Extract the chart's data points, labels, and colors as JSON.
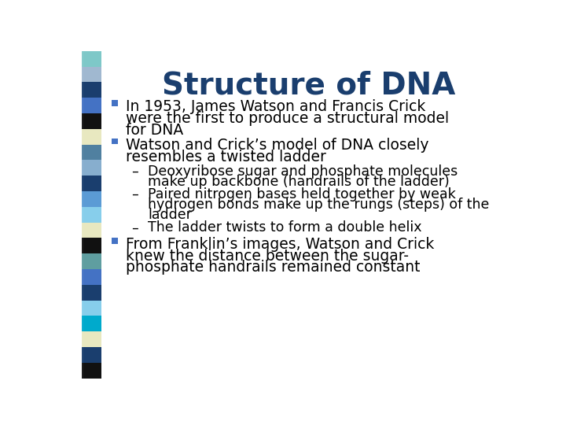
{
  "title": "Structure of DNA",
  "title_color": "#1A3E6E",
  "title_fontsize": 28,
  "bg_color": "#FFFFFF",
  "bullet_color": "#4472C4",
  "text_color": "#000000",
  "stripe_colors": [
    "#7EC8C8",
    "#A0B8D0",
    "#1A3E6E",
    "#4472C4",
    "#111111",
    "#E8E8C0",
    "#5080A0",
    "#87AECE",
    "#1A3E6E",
    "#5B9BD5",
    "#87CEEB",
    "#E8E8C0",
    "#111111",
    "#5F9EA0",
    "#4472C4",
    "#1A3E6E",
    "#87CEEB",
    "#00AACC",
    "#E8E8C0",
    "#1A3E6E",
    "#111111"
  ],
  "bullet1_items": [
    {
      "lines": [
        "In 1953, James Watson and Francis Crick",
        "were the first to produce a structural model",
        "for DNA"
      ]
    },
    {
      "lines": [
        "Watson and Crick’s model of DNA closely",
        "resembles a twisted ladder"
      ]
    }
  ],
  "bullet2_items": [
    {
      "lines": [
        "Deoxyribose sugar and phosphate molecules",
        "make up backbone (handrails of the ladder)"
      ]
    },
    {
      "lines": [
        "Paired nitrogen bases held together by weak",
        "hydrogen bonds make up the rungs (steps) of the",
        "ladder"
      ]
    },
    {
      "lines": [
        "The ladder twists to form a double helix"
      ]
    }
  ],
  "bullet3_items": [
    {
      "lines": [
        "From Franklin’s images, Watson and Crick",
        "knew the distance between the sugar-",
        "phosphate handrails remained constant"
      ]
    }
  ]
}
